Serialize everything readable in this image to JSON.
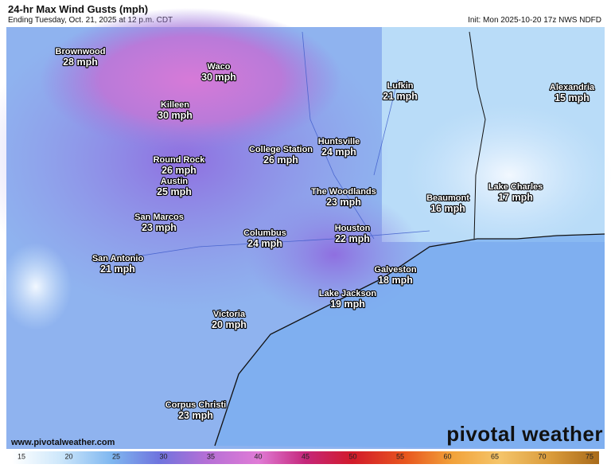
{
  "header": {
    "title": "24-hr Max Wind Gusts (mph)",
    "subtitle": "Ending Tuesday, Oct. 21, 2025 at 12 p.m. CDT",
    "init": "Init: Mon 2025-10-20 17z NWS NDFD"
  },
  "cities": [
    {
      "name": "Brownwood",
      "value": "28 mph"
    },
    {
      "name": "Waco",
      "value": "30 mph"
    },
    {
      "name": "Killeen",
      "value": "30 mph"
    },
    {
      "name": "Lufkin",
      "value": "21 mph"
    },
    {
      "name": "Alexandria",
      "value": "15 mph"
    },
    {
      "name": "Huntsville",
      "value": "24 mph"
    },
    {
      "name": "College Station",
      "value": "26 mph"
    },
    {
      "name": "Round Rock",
      "value": "26 mph"
    },
    {
      "name": "Austin",
      "value": "25 mph"
    },
    {
      "name": "The Woodlands",
      "value": "23 mph"
    },
    {
      "name": "Beaumont",
      "value": "16 mph"
    },
    {
      "name": "Lake Charles",
      "value": "17 mph"
    },
    {
      "name": "San Marcos",
      "value": "23 mph"
    },
    {
      "name": "Houston",
      "value": "22 mph"
    },
    {
      "name": "Columbus",
      "value": "24 mph"
    },
    {
      "name": "San Antonio",
      "value": "21 mph"
    },
    {
      "name": "Galveston",
      "value": "18 mph"
    },
    {
      "name": "Lake Jackson",
      "value": "19 mph"
    },
    {
      "name": "Victoria",
      "value": "20 mph"
    },
    {
      "name": "Corpus Christi",
      "value": "23 mph"
    }
  ],
  "footer": {
    "website": "www.pivotalweather.com",
    "logo": "pivotal weather"
  },
  "colorbar": {
    "ticks": [
      15,
      20,
      25,
      30,
      35,
      40,
      45,
      50,
      55,
      60,
      65,
      70,
      75
    ]
  }
}
